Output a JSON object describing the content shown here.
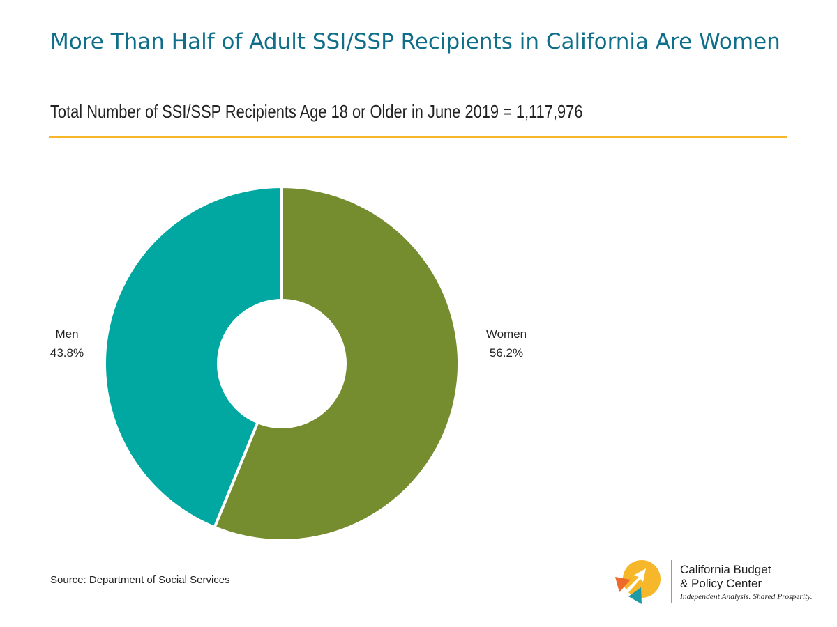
{
  "title": "More Than Half of Adult SSI/SSP Recipients in California Are Women",
  "subtitle": "Total Number of SSI/SSP Recipients Age 18 or Older in June 2019 = 1,117,976",
  "source": "Source: Department of Social Services",
  "logo": {
    "name_line1": "California Budget",
    "name_line2": "& Policy Center",
    "tagline": "Independent Analysis. Shared Prosperity."
  },
  "colors": {
    "title": "#0f6f8b",
    "rule": "#f6b82a",
    "women": "#758c2f",
    "men": "#00a8a1",
    "logo_yellow": "#f6b82a",
    "logo_orange": "#ee6a2b",
    "logo_teal": "#1d9aa5"
  },
  "chart_data": {
    "type": "pie",
    "variant": "donut",
    "slices": [
      {
        "name": "Women",
        "value": 56.2,
        "value_label": "56.2%",
        "color": "#758c2f"
      },
      {
        "name": "Men",
        "value": 43.8,
        "value_label": "43.8%",
        "color": "#00a8a1"
      }
    ],
    "start_angle_deg": 0,
    "direction": "clockwise"
  }
}
